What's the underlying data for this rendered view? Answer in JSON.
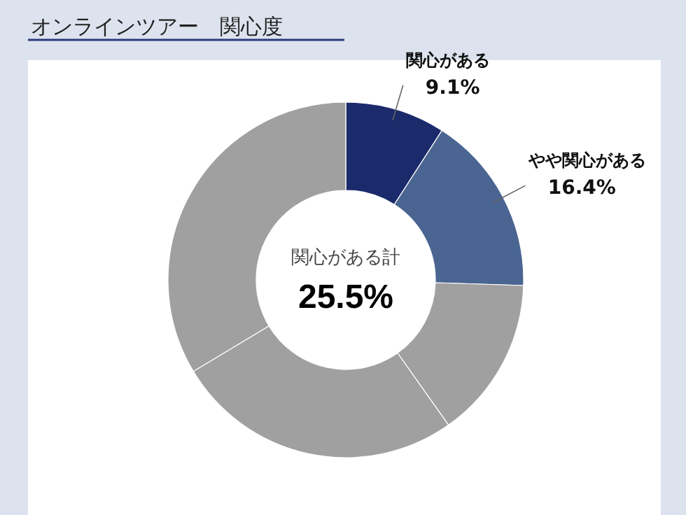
{
  "chart_data": {
    "type": "donut",
    "title": "オンラインツアー　関心度",
    "categories": [
      "関心がある",
      "やや関心がある",
      null,
      null,
      null
    ],
    "values": [
      9.1,
      16.4,
      14.7,
      26.2,
      33.6
    ],
    "colors": [
      "#1b2a6b",
      "#4a6591",
      "#a0a0a0",
      "#a0a0a0",
      "#a0a0a0"
    ],
    "value_labels": [
      "9.1%",
      "16.4%",
      null,
      null,
      null
    ],
    "annotations": [
      "関心がある計",
      "25.5%"
    ]
  }
}
